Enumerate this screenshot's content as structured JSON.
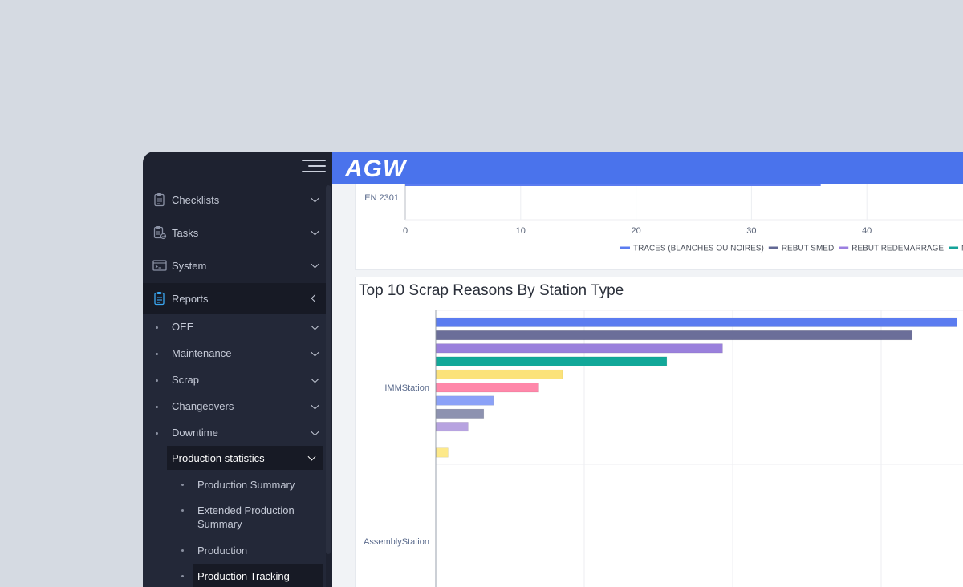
{
  "brand": {
    "logo_text": "AGW",
    "header_color": "#4a73ec"
  },
  "sidebar": {
    "items": [
      {
        "label": "Checklists",
        "icon": "clipboard-icon"
      },
      {
        "label": "Tasks",
        "icon": "task-list-icon"
      },
      {
        "label": "System",
        "icon": "terminal-icon"
      },
      {
        "label": "Reports",
        "icon": "report-icon"
      }
    ],
    "reports_sub": [
      {
        "label": "OEE"
      },
      {
        "label": "Maintenance"
      },
      {
        "label": "Scrap"
      },
      {
        "label": "Changeovers"
      },
      {
        "label": "Downtime"
      }
    ],
    "production_statistics": {
      "label": "Production statistics",
      "children": [
        {
          "label": "Production Summary"
        },
        {
          "label": "Extended Production Summary"
        },
        {
          "label": "Production"
        },
        {
          "label": "Production Tracking"
        }
      ]
    }
  },
  "chart_data": [
    {
      "type": "bar",
      "orientation": "horizontal",
      "title": "",
      "categories": [
        "EN 2301"
      ],
      "x_ticks": [
        0,
        10,
        20,
        30,
        40
      ],
      "series": [
        {
          "name": "TRACES (BLANCHES OU NOIRES)",
          "values": [
            36
          ],
          "color": "#5b7cf0"
        },
        {
          "name": "REBUT SMED",
          "values": [
            null
          ],
          "color": "#626894"
        },
        {
          "name": "REBUT REDEMARRAGE",
          "values": [
            null
          ],
          "color": "#9b7fe0"
        },
        {
          "name": "MANQUES",
          "values": [
            null
          ],
          "color": "#15a39a"
        }
      ]
    },
    {
      "type": "bar",
      "orientation": "horizontal",
      "title": "Top 10 Scrap Reasons By Station Type",
      "categories": [
        "IMMStation",
        "AssemblyStation"
      ],
      "grid": true,
      "series": [
        {
          "values": [
            70,
            null
          ],
          "color": "#5b7cf0"
        },
        {
          "values": [
            64,
            null
          ],
          "color": "#6b6e99"
        },
        {
          "values": [
            38.5,
            null
          ],
          "color": "#9a80dc"
        },
        {
          "values": [
            31,
            null
          ],
          "color": "#12a899"
        },
        {
          "values": [
            17,
            null
          ],
          "color": "#fbe27a"
        },
        {
          "values": [
            13.8,
            null
          ],
          "color": "#ff88aa"
        },
        {
          "values": [
            7.7,
            null
          ],
          "color": "#8ba1f7"
        },
        {
          "values": [
            6.4,
            null
          ],
          "color": "#8d92b0"
        },
        {
          "values": [
            4.3,
            null
          ],
          "color": "#b7a3e0"
        },
        {
          "values": [
            1.6,
            null
          ],
          "color": "#fde98a"
        }
      ]
    }
  ]
}
